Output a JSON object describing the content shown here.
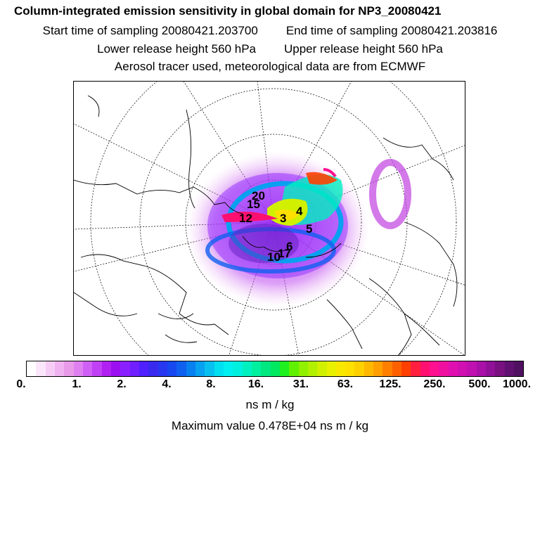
{
  "header": {
    "title": "Column-integrated emission sensitivity in global domain for NP3_20080421",
    "start_time": "Start time of sampling 20080421.203700",
    "end_time": "End time of sampling 20080421.203816",
    "lower_height": "Lower release height  560 hPa",
    "upper_height": "Upper release height  560 hPa",
    "tracer_note": "Aerosol tracer used, meteorological data are from ECMWF"
  },
  "map": {
    "time_labels": [
      "3",
      "4",
      "5",
      "6",
      "10",
      "12",
      "15",
      "17",
      "20"
    ]
  },
  "colorbar": {
    "ticks": [
      "0.",
      "1.",
      "2.",
      "4.",
      "8.",
      "16.",
      "31.",
      "63.",
      "125.",
      "250.",
      "500.",
      "1000."
    ],
    "colors": [
      "#ffffff",
      "#fbe6fb",
      "#f6ccf6",
      "#f0b2f0",
      "#e99ae9",
      "#e080f0",
      "#d060f5",
      "#c040f5",
      "#b020f0",
      "#9a10f0",
      "#8a20ff",
      "#7020ff",
      "#5020ff",
      "#3a2af0",
      "#2838f0",
      "#1848f0",
      "#1060f0",
      "#0880f0",
      "#08a0f0",
      "#08c0f0",
      "#00e0f0",
      "#00f0f0",
      "#00f0e0",
      "#00f0c0",
      "#00f0a0",
      "#00e880",
      "#00e860",
      "#20f020",
      "#60f000",
      "#90f000",
      "#b0f000",
      "#d0f000",
      "#e8f000",
      "#f8e800",
      "#ffe000",
      "#ffd000",
      "#ffb800",
      "#ffa000",
      "#ff8000",
      "#ff6000",
      "#ff4000",
      "#ff2040",
      "#ff1070",
      "#ff1090",
      "#f010a0",
      "#e010b0",
      "#d010b0",
      "#c010b0",
      "#a810a8",
      "#901098",
      "#781080",
      "#601070",
      "#501060"
    ],
    "units": "ns m / kg",
    "max_value": "Maximum value  0.478E+04 ns m / kg"
  }
}
